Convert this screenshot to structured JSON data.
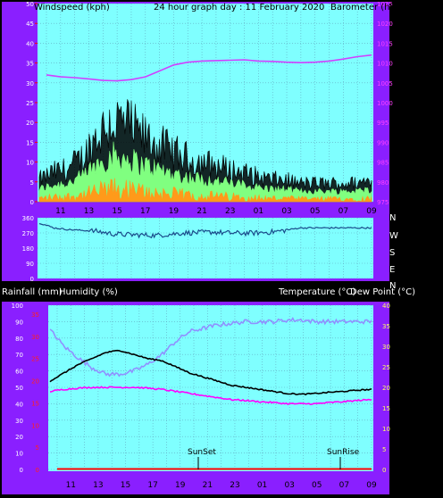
{
  "header": {
    "left": "Windspeed (kph)",
    "center": "24 hour graph day : 11 February 2020",
    "right": "Barometer (hpa)"
  },
  "wind_panel": {
    "left_ticks": [
      "0",
      "5",
      "10",
      "15",
      "20",
      "25",
      "30",
      "35",
      "40",
      "45",
      "50"
    ],
    "right_ticks": [
      "975",
      "980",
      "985",
      "990",
      "995",
      "1000",
      "1005",
      "1010",
      "1015",
      "1020",
      "1025"
    ],
    "x_ticks": [
      "11",
      "13",
      "15",
      "17",
      "19",
      "21",
      "23",
      "01",
      "03",
      "05",
      "07",
      "09"
    ]
  },
  "dir_panel": {
    "left_ticks": [
      "0",
      "90",
      "180",
      "270",
      "360"
    ],
    "compass": [
      "N",
      "W",
      "S",
      "E",
      "N"
    ]
  },
  "lower_header": {
    "left": "Rainfall (mm)",
    "left2": "Humidity (%)",
    "right": "Temperature (°C)",
    "right2": "Dew Point (°C)"
  },
  "lower_panel": {
    "hum_ticks": [
      "0",
      "10",
      "20",
      "30",
      "40",
      "50",
      "60",
      "70",
      "80",
      "90",
      "100"
    ],
    "rain_ticks": [
      "0",
      "5",
      "10",
      "15",
      "20",
      "25",
      "30",
      "35"
    ],
    "temp_ticks": [
      "0",
      "5",
      "10",
      "15",
      "20",
      "25",
      "30",
      "35",
      "40"
    ],
    "x_ticks": [
      "11",
      "13",
      "15",
      "17",
      "19",
      "21",
      "23",
      "01",
      "03",
      "05",
      "07",
      "09"
    ],
    "sunset": "SunSet",
    "sunrise": "SunRise"
  },
  "colors": {
    "frame": "#8a1fff",
    "plot_bg": "#7fffff",
    "wind_gust": "#000000",
    "wind_avg": "#80ff80",
    "wind_low": "#ff9a1a",
    "barometer": "#d040ff",
    "direction": "#1a4a8a",
    "temperature": "#000000",
    "humidity": "#9090ff",
    "dew_point": "#ff00ff",
    "rain": "#ff0000"
  },
  "chart_data": [
    {
      "type": "line",
      "title": "24 hour graph day : 11 February 2020",
      "ylabel": "Windspeed (kph)",
      "y2label": "Barometer (hpa)",
      "ylim": [
        0,
        50
      ],
      "y2lim": [
        975,
        1025
      ],
      "x": [
        "10",
        "11",
        "12",
        "13",
        "14",
        "15",
        "16",
        "17",
        "18",
        "19",
        "20",
        "21",
        "22",
        "23",
        "00",
        "01",
        "02",
        "03",
        "04",
        "05",
        "06",
        "07",
        "08",
        "09"
      ],
      "series": [
        {
          "name": "Windspeed (kph)",
          "values": [
            6,
            8,
            9,
            12,
            18,
            22,
            21,
            18,
            16,
            14,
            12,
            11,
            10,
            9,
            8,
            7,
            6,
            6,
            5,
            5,
            5,
            5,
            5,
            6
          ]
        },
        {
          "name": "Barometer (hpa)",
          "values": [
            1007,
            1006.5,
            1006.3,
            1006,
            1005.6,
            1005.5,
            1005.8,
            1006.5,
            1008,
            1009.5,
            1010.2,
            1010.5,
            1010.6,
            1010.7,
            1010.8,
            1010.5,
            1010.4,
            1010.2,
            1010.1,
            1010.2,
            1010.5,
            1011,
            1011.6,
            1012
          ]
        }
      ]
    },
    {
      "type": "line",
      "ylabel": "Wind direction",
      "ylim": [
        0,
        360
      ],
      "x": [
        "10",
        "11",
        "12",
        "13",
        "14",
        "15",
        "16",
        "17",
        "18",
        "19",
        "20",
        "21",
        "22",
        "23",
        "00",
        "01",
        "02",
        "03",
        "04",
        "05",
        "06",
        "07",
        "08",
        "09"
      ],
      "series": [
        {
          "name": "Wind direction",
          "values": [
            330,
            300,
            290,
            285,
            280,
            265,
            260,
            258,
            255,
            262,
            270,
            272,
            275,
            270,
            268,
            270,
            275,
            285,
            300,
            300,
            300,
            300,
            300,
            300
          ]
        }
      ]
    },
    {
      "type": "line",
      "ylabel": "Humidity (%)",
      "y2label": "Temperature (°C)",
      "ylim": [
        0,
        100
      ],
      "y2lim": [
        0,
        40
      ],
      "x": [
        "10",
        "11",
        "12",
        "13",
        "14",
        "15",
        "16",
        "17",
        "18",
        "19",
        "20",
        "21",
        "22",
        "23",
        "00",
        "01",
        "02",
        "03",
        "04",
        "05",
        "06",
        "07",
        "08",
        "09"
      ],
      "series": [
        {
          "name": "Temperature (°C)",
          "values": [
            21.5,
            23.5,
            25.5,
            27,
            28.5,
            29,
            28,
            27,
            26.5,
            25,
            23.5,
            22.5,
            21.5,
            20.5,
            20,
            19.5,
            19,
            18.5,
            18.3,
            18.5,
            18.8,
            19,
            19.3,
            19.5
          ]
        },
        {
          "name": "Humidity (%)",
          "values": [
            85,
            75,
            68,
            62,
            58,
            58,
            60,
            64,
            70,
            78,
            84,
            86,
            88,
            89,
            90,
            90,
            90,
            91,
            91,
            90,
            90,
            90,
            90,
            90
          ]
        },
        {
          "name": "Dew Point (°C)",
          "values": [
            19,
            19.5,
            19.8,
            20,
            20,
            20,
            20,
            19.8,
            19.5,
            19,
            18.5,
            18,
            17.5,
            17,
            16.8,
            16.5,
            16.3,
            16,
            16,
            16,
            16.3,
            16.5,
            16.8,
            17
          ]
        },
        {
          "name": "Rainfall (mm)",
          "values": [
            0,
            0,
            0,
            0,
            0,
            0,
            0,
            0,
            0,
            0,
            0,
            0,
            0,
            0,
            0,
            0,
            0,
            0,
            0,
            0,
            0,
            0,
            0,
            0
          ]
        }
      ]
    }
  ]
}
